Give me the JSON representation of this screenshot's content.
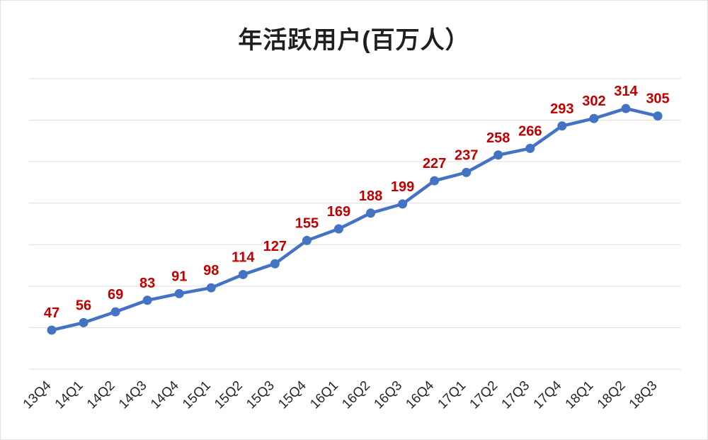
{
  "chart": {
    "title": "年活跃用户(百万人）"
  },
  "chart_data": {
    "type": "line",
    "title": "年活跃用户(百万人）",
    "categories": [
      "13Q4",
      "14Q1",
      "14Q2",
      "14Q3",
      "14Q4",
      "15Q1",
      "15Q2",
      "15Q3",
      "15Q4",
      "16Q1",
      "16Q2",
      "16Q3",
      "16Q4",
      "17Q1",
      "17Q2",
      "17Q3",
      "17Q4",
      "18Q1",
      "18Q2",
      "18Q3"
    ],
    "values": [
      47,
      56,
      69,
      83,
      91,
      98,
      114,
      127,
      155,
      169,
      188,
      199,
      227,
      237,
      258,
      266,
      293,
      302,
      314,
      305
    ],
    "xlabel": "",
    "ylabel": "",
    "ylim": [
      0,
      350
    ],
    "grid_step": 50,
    "grid": "on",
    "legend_position": "none",
    "line_color": "#4472c4",
    "marker_color": "#4472c4",
    "data_label_color": "#c00000",
    "grid_color": "#dcdcdc",
    "axis_label_color": "#262626"
  }
}
